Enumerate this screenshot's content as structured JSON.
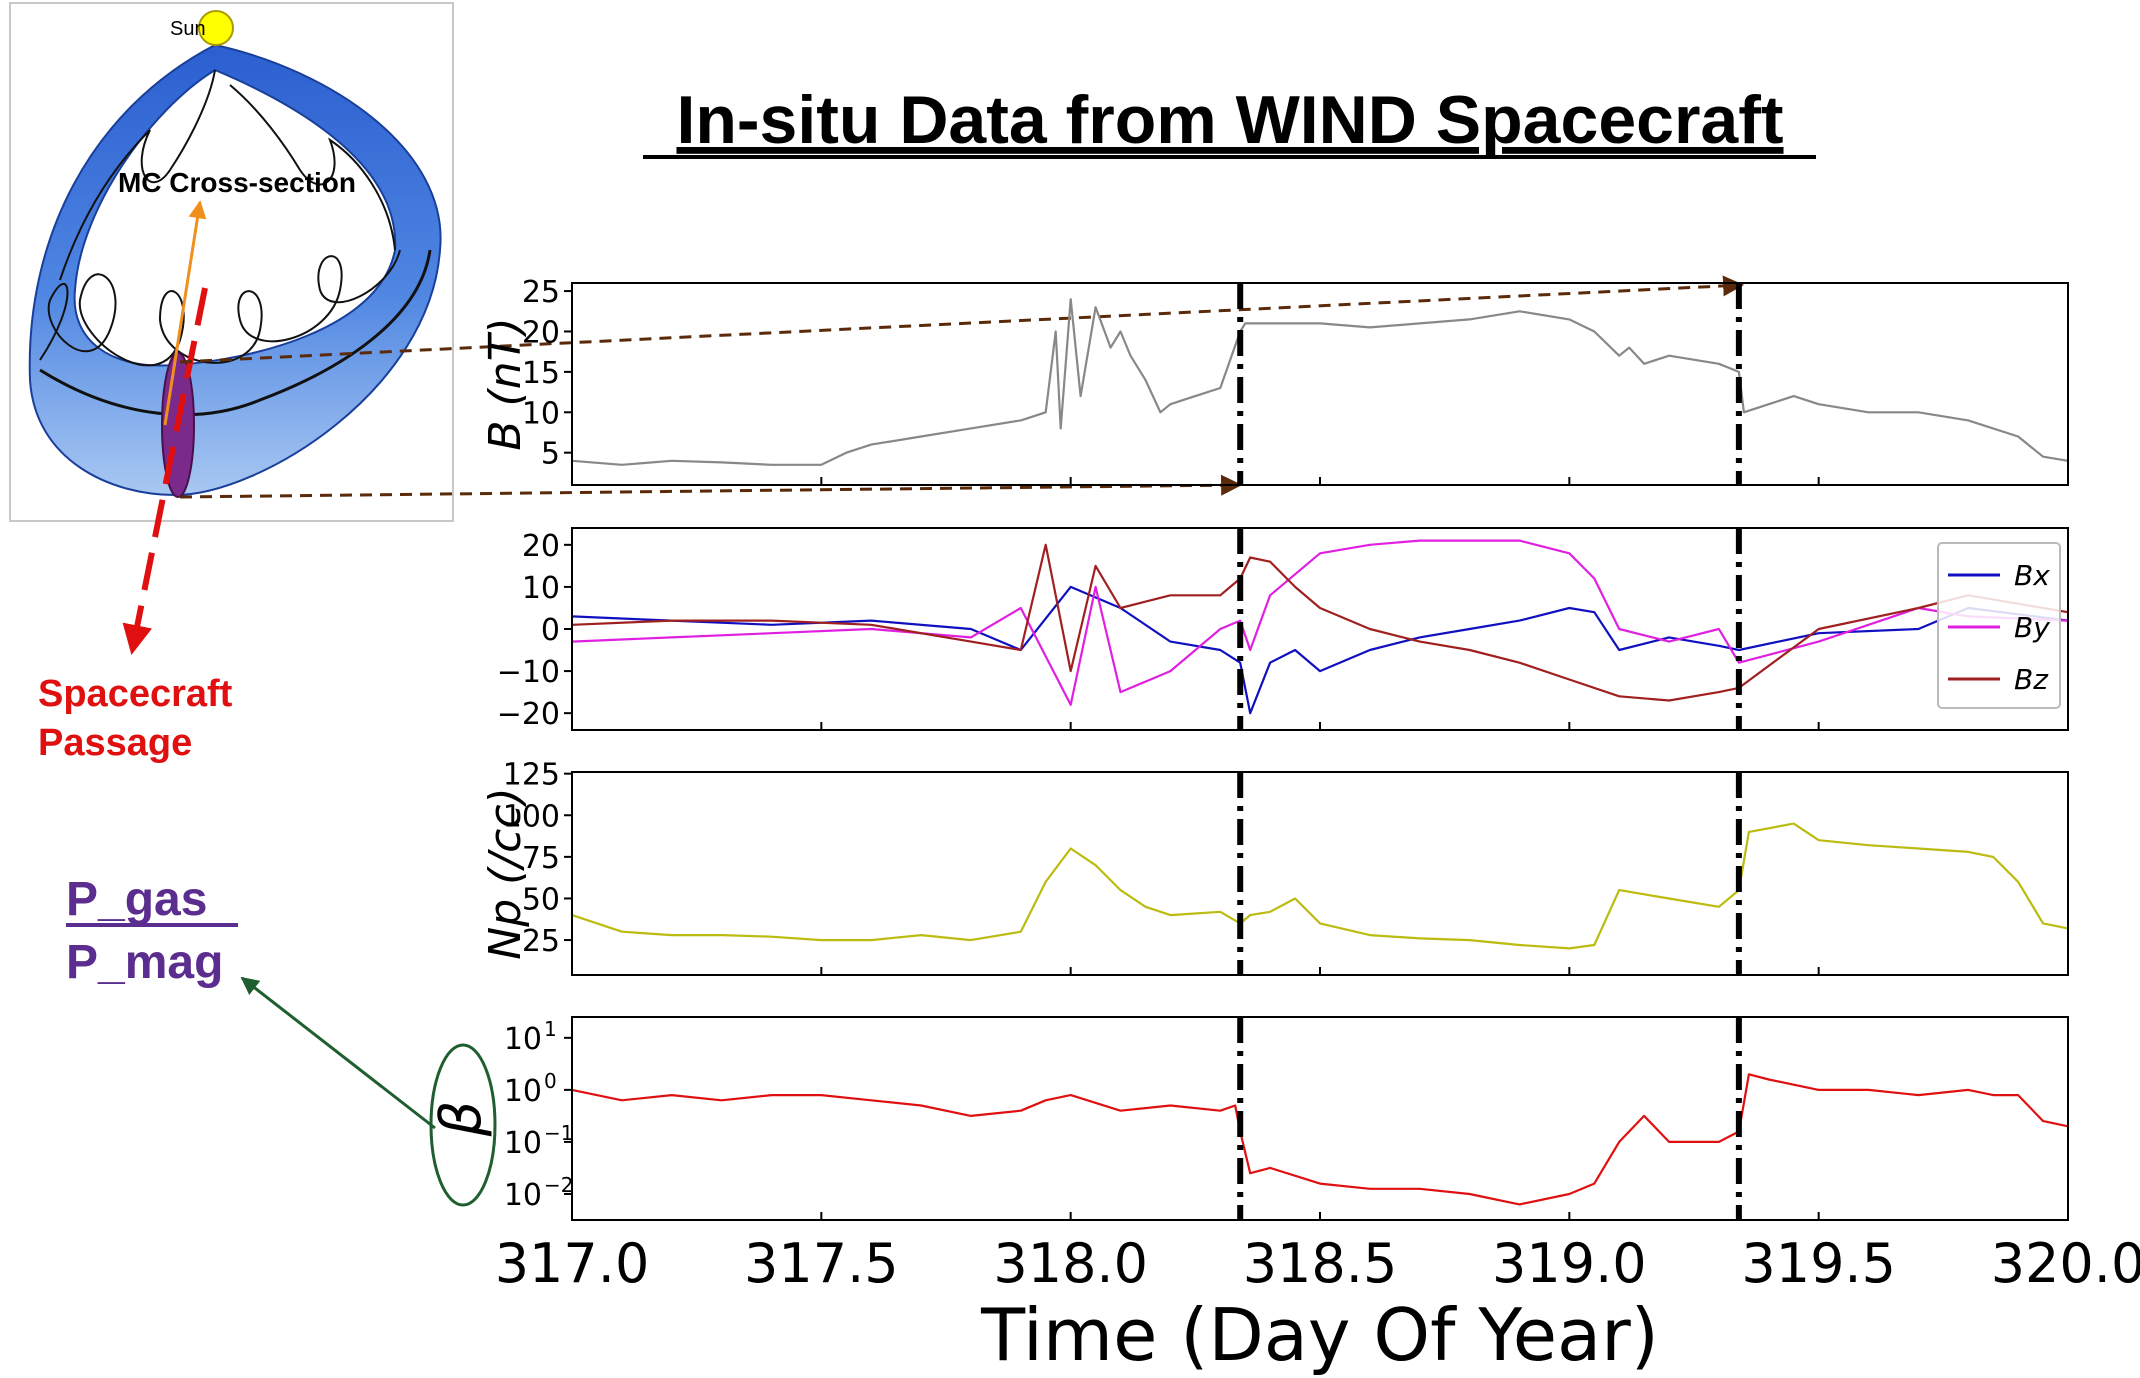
{
  "title": "In-situ Data from WIND Spacecraft",
  "diagram": {
    "sun_label": "Sun",
    "mc_label": "MC Cross-section",
    "passage_label_line1": "Spacecraft",
    "passage_label_line2": "Passage",
    "beta_numerator": "P_gas",
    "beta_denominator": "P_mag",
    "colors": {
      "rope_outer": "#3a6fd8",
      "rope_inner": "#a9c8f2",
      "spacecraft": "#7a2a8a",
      "passage_arrow": "#e01010",
      "mc_arrow": "#f0901c",
      "ratio_arrow": "#1f5f2f",
      "ratio_text": "#5b2d8e",
      "link_arrow": "#5a2a0a"
    }
  },
  "chart_data": {
    "type": "line",
    "xlabel": "Time (Day Of Year)",
    "xlim": [
      317.0,
      320.0
    ],
    "xticks": [
      "317.0",
      "317.5",
      "318.0",
      "318.5",
      "319.0",
      "319.5",
      "320.0"
    ],
    "xtick_values": [
      317.0,
      317.5,
      318.0,
      318.5,
      319.0,
      319.5,
      320.0
    ],
    "boundaries": [
      318.34,
      319.34
    ],
    "panels": [
      {
        "id": "b",
        "ylabel": "B (nT)",
        "ylim": [
          1,
          26
        ],
        "yscale": "linear",
        "yticks": [
          "5",
          "10",
          "15",
          "20",
          "25"
        ],
        "ytick_values": [
          5,
          10,
          15,
          20,
          25
        ],
        "series": [
          {
            "color": "#888888",
            "x": [
              317.0,
              317.1,
              317.2,
              317.3,
              317.4,
              317.5,
              317.55,
              317.6,
              317.7,
              317.8,
              317.9,
              317.95,
              317.97,
              317.98,
              318.0,
              318.02,
              318.05,
              318.08,
              318.1,
              318.12,
              318.15,
              318.18,
              318.2,
              318.25,
              318.3,
              318.34,
              318.35,
              318.4,
              318.5,
              318.6,
              318.7,
              318.8,
              318.9,
              319.0,
              319.05,
              319.1,
              319.12,
              319.15,
              319.2,
              319.3,
              319.34,
              319.35,
              319.4,
              319.45,
              319.5,
              319.6,
              319.7,
              319.8,
              319.9,
              319.95,
              320.0
            ],
            "y": [
              4,
              3.5,
              4,
              3.8,
              3.5,
              3.5,
              5,
              6,
              7,
              8,
              9,
              10,
              20,
              8,
              24,
              12,
              23,
              18,
              20,
              17,
              14,
              10,
              11,
              12,
              13,
              20,
              21,
              21,
              21,
              20.5,
              21,
              21.5,
              22.5,
              21.5,
              20,
              17,
              18,
              16,
              17,
              16,
              15,
              10,
              11,
              12,
              11,
              10,
              10,
              9,
              7,
              4.5,
              4
            ]
          }
        ]
      },
      {
        "id": "components",
        "ylim": [
          -24,
          24
        ],
        "yscale": "linear",
        "yticks": [
          "−20",
          "−10",
          "0",
          "10",
          "20"
        ],
        "ytick_values": [
          -20,
          -10,
          0,
          10,
          20
        ],
        "legend": {
          "placement": "right"
        },
        "series": [
          {
            "name": "Bx",
            "color": "#1010c0",
            "x": [
              317.0,
              317.2,
              317.4,
              317.6,
              317.8,
              317.9,
              318.0,
              318.1,
              318.2,
              318.3,
              318.34,
              318.36,
              318.4,
              318.45,
              318.5,
              318.6,
              318.7,
              318.8,
              318.9,
              319.0,
              319.05,
              319.1,
              319.2,
              319.3,
              319.34,
              319.5,
              319.7,
              319.8,
              320.0
            ],
            "y": [
              3,
              2,
              1,
              2,
              0,
              -5,
              10,
              5,
              -3,
              -5,
              -8,
              -20,
              -8,
              -5,
              -10,
              -5,
              -2,
              0,
              2,
              5,
              4,
              -5,
              -2,
              -4,
              -5,
              -1,
              0,
              5,
              2
            ]
          },
          {
            "name": "By",
            "color": "#e020e0",
            "x": [
              317.0,
              317.2,
              317.4,
              317.6,
              317.8,
              317.9,
              318.0,
              318.05,
              318.1,
              318.2,
              318.3,
              318.34,
              318.36,
              318.4,
              318.5,
              318.6,
              318.7,
              318.8,
              318.9,
              319.0,
              319.05,
              319.1,
              319.2,
              319.3,
              319.34,
              319.5,
              319.7,
              319.8,
              320.0
            ],
            "y": [
              -3,
              -2,
              -1,
              0,
              -2,
              5,
              -18,
              10,
              -15,
              -10,
              0,
              2,
              -5,
              8,
              18,
              20,
              21,
              21,
              21,
              18,
              12,
              0,
              -3,
              0,
              -8,
              -3,
              5,
              3,
              2
            ]
          },
          {
            "name": "Bz",
            "color": "#a02020",
            "x": [
              317.0,
              317.2,
              317.4,
              317.6,
              317.8,
              317.9,
              317.95,
              318.0,
              318.05,
              318.1,
              318.2,
              318.3,
              318.34,
              318.36,
              318.4,
              318.45,
              318.5,
              318.6,
              318.7,
              318.8,
              318.9,
              319.0,
              319.1,
              319.2,
              319.3,
              319.34,
              319.5,
              319.7,
              319.8,
              320.0
            ],
            "y": [
              1,
              2,
              2,
              1,
              -3,
              -5,
              20,
              -10,
              15,
              5,
              8,
              8,
              12,
              17,
              16,
              10,
              5,
              0,
              -3,
              -5,
              -8,
              -12,
              -16,
              -17,
              -15,
              -14,
              0,
              5,
              8,
              4
            ]
          }
        ]
      },
      {
        "id": "np",
        "ylabel": "Np (/cc)",
        "ylim": [
          4,
          126
        ],
        "yscale": "linear",
        "yticks": [
          "25",
          "50",
          "75",
          "100",
          "125"
        ],
        "ytick_values": [
          25,
          50,
          75,
          100,
          125
        ],
        "series": [
          {
            "color": "#bbbb10",
            "x": [
              317.0,
              317.1,
              317.2,
              317.3,
              317.4,
              317.5,
              317.6,
              317.7,
              317.8,
              317.9,
              317.95,
              318.0,
              318.05,
              318.1,
              318.15,
              318.2,
              318.3,
              318.34,
              318.36,
              318.4,
              318.45,
              318.5,
              318.6,
              318.7,
              318.8,
              318.9,
              319.0,
              319.05,
              319.1,
              319.2,
              319.3,
              319.34,
              319.36,
              319.45,
              319.5,
              319.6,
              319.7,
              319.8,
              319.85,
              319.9,
              319.95,
              320.0
            ],
            "y": [
              40,
              30,
              28,
              28,
              27,
              25,
              25,
              28,
              25,
              30,
              60,
              80,
              70,
              55,
              45,
              40,
              42,
              35,
              40,
              42,
              50,
              35,
              28,
              26,
              25,
              22,
              20,
              22,
              55,
              50,
              45,
              55,
              90,
              95,
              85,
              82,
              80,
              78,
              75,
              60,
              35,
              32
            ]
          }
        ]
      },
      {
        "id": "beta",
        "ylabel": "β",
        "ylim": [
          -2.5,
          1.4
        ],
        "yscale": "log",
        "yticks": [
          "10",
          "10",
          "10",
          "10"
        ],
        "ytick_exponents": [
          "1",
          "0",
          "−1",
          "−2"
        ],
        "ytick_values": [
          1,
          0,
          -1,
          -2
        ],
        "series": [
          {
            "color": "#e01010",
            "x": [
              317.0,
              317.1,
              317.2,
              317.3,
              317.4,
              317.5,
              317.6,
              317.7,
              317.8,
              317.9,
              317.95,
              318.0,
              318.1,
              318.2,
              318.3,
              318.33,
              318.34,
              318.36,
              318.4,
              318.5,
              318.6,
              318.7,
              318.8,
              318.9,
              319.0,
              319.05,
              319.1,
              319.15,
              319.2,
              319.3,
              319.34,
              319.36,
              319.4,
              319.5,
              319.6,
              319.7,
              319.8,
              319.85,
              319.9,
              319.95,
              320.0
            ],
            "y": [
              0.0,
              -0.2,
              -0.1,
              -0.2,
              -0.1,
              -0.1,
              -0.2,
              -0.3,
              -0.5,
              -0.4,
              -0.2,
              -0.1,
              -0.4,
              -0.3,
              -0.4,
              -0.3,
              -0.8,
              -1.6,
              -1.5,
              -1.8,
              -1.9,
              -1.9,
              -2.0,
              -2.2,
              -2.0,
              -1.8,
              -1.0,
              -0.5,
              -1.0,
              -1.0,
              -0.8,
              0.3,
              0.2,
              0.0,
              0.0,
              -0.1,
              0.0,
              -0.1,
              -0.1,
              -0.6,
              -0.7
            ]
          }
        ]
      }
    ]
  }
}
